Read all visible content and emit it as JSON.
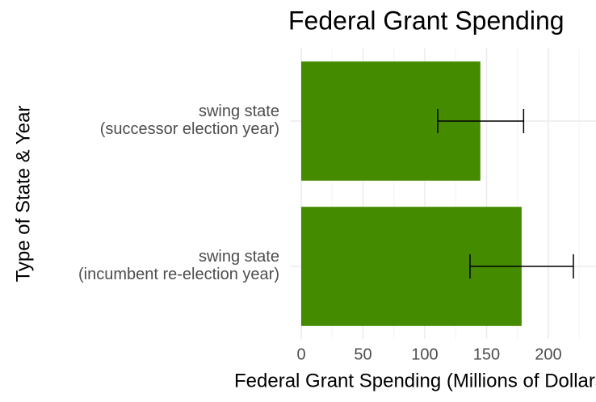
{
  "chart_data": {
    "type": "bar",
    "orientation": "horizontal",
    "title": "Federal Grant Spending",
    "x_label": "Federal Grant Spending (Millions of Dollars)",
    "y_label": "Type of State & Year",
    "categories": [
      "swing state\n(successor election year)",
      "swing state\n(incumbent re-election year)"
    ],
    "values": [
      145,
      178.4
    ],
    "ci_low": [
      110.5,
      136.6
    ],
    "ci_high": [
      180,
      220.3
    ],
    "color": "#458b00",
    "xlim": [
      -8.5,
      238.6
    ],
    "xticks": [
      0,
      50,
      100,
      150,
      200
    ],
    "grid": true
  }
}
